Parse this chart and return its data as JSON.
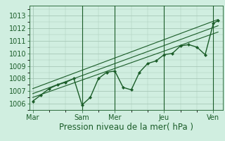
{
  "bg_color": "#d0eee0",
  "plot_bg_color": "#d0eee0",
  "grid_color": "#a8c8b8",
  "line_color": "#1a5c28",
  "xlabel": "Pression niveau de la mer( hPa )",
  "ylim": [
    1005.5,
    1013.8
  ],
  "yticks": [
    1006,
    1007,
    1008,
    1009,
    1010,
    1011,
    1012,
    1013
  ],
  "xtick_labels": [
    "Mar",
    "Sam",
    "Mer",
    "Jeu",
    "Ven"
  ],
  "xtick_positions": [
    0,
    42,
    70,
    112,
    154
  ],
  "main_x": [
    0,
    7,
    14,
    21,
    28,
    35,
    42,
    49,
    56,
    63,
    70,
    77,
    84,
    91,
    98,
    105,
    112,
    119,
    126,
    133,
    140,
    147,
    154,
    158
  ],
  "main_y": [
    1006.2,
    1006.7,
    1007.2,
    1007.5,
    1007.7,
    1008.0,
    1005.9,
    1006.5,
    1008.0,
    1008.5,
    1008.6,
    1007.3,
    1007.1,
    1008.5,
    1009.2,
    1009.4,
    1009.9,
    1010.0,
    1010.6,
    1010.7,
    1010.5,
    1009.9,
    1012.4,
    1012.6
  ],
  "trend1_x": [
    0,
    158
  ],
  "trend1_y": [
    1006.8,
    1012.2
  ],
  "trend2_x": [
    0,
    158
  ],
  "trend2_y": [
    1006.5,
    1011.7
  ],
  "trend3_x": [
    0,
    158
  ],
  "trend3_y": [
    1007.2,
    1012.7
  ],
  "vline_positions": [
    42,
    70,
    112,
    154
  ],
  "xlim": [
    -3,
    162
  ],
  "xlabel_fontsize": 8.5,
  "ytick_fontsize": 7,
  "xtick_fontsize": 7
}
